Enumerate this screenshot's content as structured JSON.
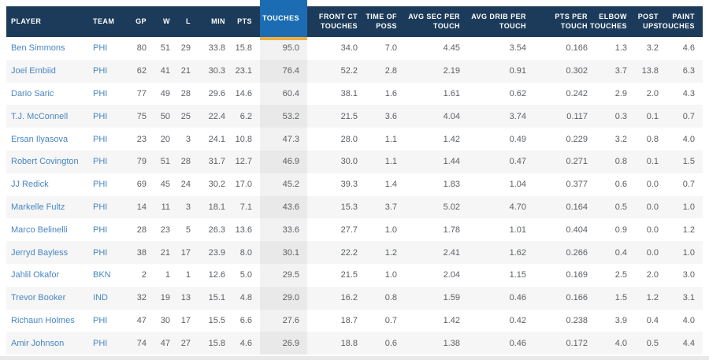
{
  "colors": {
    "header_bg": "#1c3b5a",
    "highlight_header_bg": "#1b6cb2",
    "highlight_underline": "#eeb041",
    "link_text": "#4a86c1",
    "value_text": "#5b5f64",
    "alt_row_bg": "#f6f6f6",
    "scrollbar_track": "#e9e9e9"
  },
  "table": {
    "sorted_column": "touches",
    "columns": [
      {
        "key": "player",
        "label": "PLAYER",
        "align": "left"
      },
      {
        "key": "team",
        "label": "TEAM",
        "align": "left"
      },
      {
        "key": "gp",
        "label": "GP"
      },
      {
        "key": "w",
        "label": "W"
      },
      {
        "key": "l",
        "label": "L"
      },
      {
        "key": "min",
        "label": "MIN"
      },
      {
        "key": "pts",
        "label": "PTS"
      },
      {
        "key": "touches",
        "label": "TOUCHES",
        "highlighted": true
      },
      {
        "key": "front_ct_touches",
        "label": "FRONT CT\nTOUCHES"
      },
      {
        "key": "time_of_poss",
        "label": "TIME OF\nPOSS"
      },
      {
        "key": "avg_sec_per_touch",
        "label": "AVG SEC PER\nTOUCH"
      },
      {
        "key": "avg_drib_per_touch",
        "label": "AVG DRIB PER\nTOUCH"
      },
      {
        "key": "pts_per_touch",
        "label": "PTS PER\nTOUCH"
      },
      {
        "key": "elbow_touches",
        "label": "ELBOW\nTOUCHES"
      },
      {
        "key": "post_ups",
        "label": "POST\nUPS"
      },
      {
        "key": "paint_touches",
        "label": "PAINT\nTOUCHES"
      }
    ],
    "rows": [
      [
        "Ben Simmons",
        "PHI",
        "80",
        "51",
        "29",
        "33.8",
        "15.8",
        "95.0",
        "34.0",
        "7.0",
        "4.45",
        "3.54",
        "0.166",
        "1.3",
        "3.2",
        "4.6"
      ],
      [
        "Joel Embiid",
        "PHI",
        "62",
        "41",
        "21",
        "30.3",
        "23.1",
        "76.4",
        "52.2",
        "2.8",
        "2.19",
        "0.91",
        "0.302",
        "3.7",
        "13.8",
        "6.3"
      ],
      [
        "Dario Saric",
        "PHI",
        "77",
        "49",
        "28",
        "29.6",
        "14.6",
        "60.4",
        "38.1",
        "1.6",
        "1.61",
        "0.62",
        "0.242",
        "2.9",
        "2.0",
        "4.3"
      ],
      [
        "T.J. McConnell",
        "PHI",
        "75",
        "50",
        "25",
        "22.4",
        "6.2",
        "53.2",
        "21.5",
        "3.6",
        "4.04",
        "3.74",
        "0.117",
        "0.3",
        "0.1",
        "0.7"
      ],
      [
        "Ersan Ilyasova",
        "PHI",
        "23",
        "20",
        "3",
        "24.1",
        "10.8",
        "47.3",
        "28.0",
        "1.1",
        "1.42",
        "0.49",
        "0.229",
        "3.2",
        "0.8",
        "4.0"
      ],
      [
        "Robert Covington",
        "PHI",
        "79",
        "51",
        "28",
        "31.7",
        "12.7",
        "46.9",
        "30.0",
        "1.1",
        "1.44",
        "0.47",
        "0.271",
        "0.8",
        "0.1",
        "1.5"
      ],
      [
        "JJ Redick",
        "PHI",
        "69",
        "45",
        "24",
        "30.2",
        "17.0",
        "45.2",
        "39.3",
        "1.4",
        "1.83",
        "1.04",
        "0.377",
        "0.6",
        "0.0",
        "0.7"
      ],
      [
        "Markelle Fultz",
        "PHI",
        "14",
        "11",
        "3",
        "18.1",
        "7.1",
        "43.6",
        "15.3",
        "3.7",
        "5.02",
        "4.70",
        "0.164",
        "0.5",
        "0.0",
        "1.0"
      ],
      [
        "Marco Belinelli",
        "PHI",
        "28",
        "23",
        "5",
        "26.3",
        "13.6",
        "33.6",
        "27.7",
        "1.0",
        "1.78",
        "1.01",
        "0.404",
        "0.9",
        "0.0",
        "1.2"
      ],
      [
        "Jerryd Bayless",
        "PHI",
        "38",
        "21",
        "17",
        "23.9",
        "8.0",
        "30.1",
        "22.2",
        "1.2",
        "2.41",
        "1.62",
        "0.266",
        "0.4",
        "0.0",
        "1.0"
      ],
      [
        "Jahlil Okafor",
        "BKN",
        "2",
        "1",
        "1",
        "12.6",
        "5.0",
        "29.5",
        "21.5",
        "1.0",
        "2.04",
        "1.15",
        "0.169",
        "2.5",
        "2.0",
        "3.0"
      ],
      [
        "Trevor Booker",
        "IND",
        "32",
        "19",
        "13",
        "15.1",
        "4.8",
        "29.0",
        "16.2",
        "0.8",
        "1.59",
        "0.46",
        "0.166",
        "1.5",
        "1.2",
        "3.1"
      ],
      [
        "Richaun Holmes",
        "PHI",
        "47",
        "30",
        "17",
        "15.5",
        "6.6",
        "27.6",
        "18.7",
        "0.7",
        "1.42",
        "0.42",
        "0.238",
        "3.9",
        "0.4",
        "4.0"
      ],
      [
        "Amir Johnson",
        "PHI",
        "74",
        "47",
        "27",
        "15.8",
        "4.6",
        "26.9",
        "18.8",
        "0.6",
        "1.38",
        "0.46",
        "0.172",
        "4.0",
        "0.5",
        "4.4"
      ]
    ]
  }
}
